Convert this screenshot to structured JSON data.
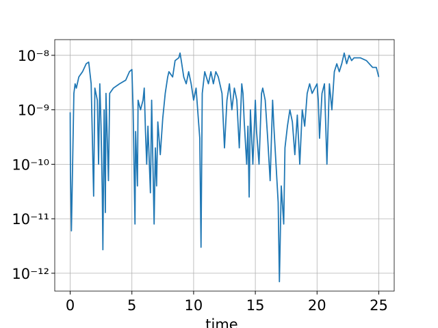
{
  "chart_data": {
    "type": "line",
    "x_label": "time",
    "log_y": true,
    "grid": true,
    "xlim": [
      -1.25,
      26.25
    ],
    "ylim": [
      4.7e-13,
      1.94e-08
    ],
    "xticks": [
      0,
      5,
      10,
      15,
      20,
      25
    ],
    "yticks": [
      {
        "value": 1e-12,
        "label": "10⁻¹²"
      },
      {
        "value": 1e-11,
        "label": "10⁻¹¹"
      },
      {
        "value": 1e-10,
        "label": "10⁻¹⁰"
      },
      {
        "value": 1e-09,
        "label": "10⁻⁹"
      },
      {
        "value": 1e-08,
        "label": "10⁻⁸"
      }
    ],
    "series": [
      {
        "color": "#1f77b4",
        "x": [
          0,
          0.02,
          0.1,
          0.3,
          0.4,
          0.5,
          0.7,
          1.0,
          1.3,
          1.5,
          1.7,
          1.9,
          2.0,
          2.2,
          2.3,
          2.4,
          2.5,
          2.6,
          2.65,
          2.75,
          2.85,
          2.9,
          3.1,
          3.2,
          3.5,
          4.0,
          4.5,
          4.8,
          5.0,
          5.1,
          5.25,
          5.3,
          5.45,
          5.5,
          5.7,
          5.9,
          6.0,
          6.1,
          6.2,
          6.3,
          6.5,
          6.6,
          6.8,
          6.9,
          7.0,
          7.1,
          7.3,
          7.5,
          7.7,
          7.9,
          8.0,
          8.3,
          8.5,
          8.8,
          8.9,
          9.0,
          9.2,
          9.4,
          9.6,
          9.8,
          10.0,
          10.2,
          10.4,
          10.5,
          10.6,
          10.7,
          10.9,
          11.2,
          11.4,
          11.6,
          11.8,
          12.0,
          12.3,
          12.5,
          12.7,
          12.9,
          13.1,
          13.3,
          13.5,
          13.7,
          13.9,
          14.0,
          14.1,
          14.3,
          14.4,
          14.5,
          14.6,
          14.8,
          15.0,
          15.1,
          15.3,
          15.5,
          15.6,
          15.8,
          16.0,
          16.2,
          16.4,
          16.5,
          16.7,
          16.85,
          16.95,
          17.1,
          17.3,
          17.4,
          17.6,
          17.8,
          18.0,
          18.2,
          18.4,
          18.6,
          18.8,
          19.0,
          19.2,
          19.4,
          19.6,
          20.0,
          20.1,
          20.2,
          20.4,
          20.6,
          20.8,
          21.0,
          21.2,
          21.4,
          21.6,
          21.8,
          22.0,
          22.2,
          22.4,
          22.6,
          22.8,
          23.0,
          23.5,
          24.0,
          24.5,
          24.8,
          25.0
        ],
        "values": [
          9e-10,
          8e-11,
          6e-12,
          2e-09,
          3e-09,
          2.5e-09,
          4e-09,
          5e-09,
          7e-09,
          7.5e-09,
          3e-09,
          2.6e-11,
          2.5e-09,
          1.5e-09,
          1e-10,
          3e-09,
          5e-10,
          3e-11,
          2.7e-12,
          1e-09,
          1.3e-11,
          2e-09,
          5e-11,
          2e-09,
          2.5e-09,
          3e-09,
          3.5e-09,
          5e-09,
          5.5e-09,
          1e-09,
          8e-12,
          4e-10,
          4e-11,
          1.5e-09,
          1e-09,
          1.5e-09,
          2.5e-09,
          4e-10,
          1e-10,
          5e-10,
          3e-11,
          1.5e-09,
          8e-12,
          2e-10,
          4e-11,
          6e-10,
          1.5e-10,
          7e-10,
          2e-09,
          4e-09,
          5e-09,
          4e-09,
          8e-09,
          9e-09,
          1.1e-08,
          8e-09,
          4e-09,
          3e-09,
          5e-09,
          3e-09,
          1.5e-09,
          2.5e-09,
          6e-10,
          3e-10,
          3e-12,
          2e-09,
          5e-09,
          3e-09,
          5e-09,
          3e-09,
          5e-09,
          4e-09,
          2e-09,
          2e-10,
          1.5e-09,
          3e-09,
          1e-09,
          2.5e-09,
          1.5e-09,
          2e-10,
          3e-09,
          2e-09,
          6e-10,
          1e-10,
          5e-10,
          2.5e-11,
          1e-09,
          1e-10,
          1.5e-09,
          4e-10,
          1e-10,
          2e-09,
          2.5e-09,
          1.5e-09,
          3e-10,
          5e-11,
          1.5e-09,
          5e-10,
          8e-11,
          2e-11,
          7e-13,
          4e-11,
          8e-12,
          2e-10,
          5e-10,
          1e-09,
          6e-10,
          1.5e-10,
          8e-10,
          1e-10,
          1e-09,
          5e-10,
          2e-09,
          3e-09,
          2e-09,
          3e-09,
          1.5e-09,
          3e-10,
          2e-09,
          3e-09,
          1e-10,
          3e-09,
          1e-09,
          5e-09,
          7e-09,
          5e-09,
          7e-09,
          1.1e-08,
          7e-09,
          1e-08,
          8e-09,
          9e-09,
          9e-09,
          8e-09,
          6e-09,
          6e-09,
          4e-09
        ]
      }
    ]
  }
}
